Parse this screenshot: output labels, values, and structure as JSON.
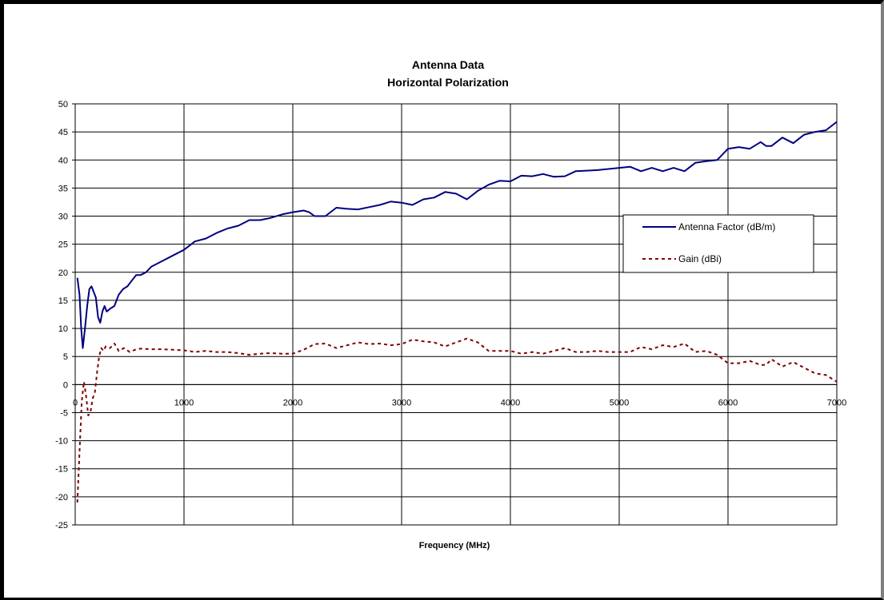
{
  "chart_data": {
    "type": "line",
    "title": "Antenna Data",
    "subtitle": "Horizontal Polarization",
    "xlabel": "Frequency (MHz)",
    "ylabel": "",
    "xlim": [
      0,
      7000
    ],
    "ylim": [
      -25,
      50
    ],
    "xticks": [
      0,
      1000,
      2000,
      3000,
      4000,
      5000,
      6000,
      7000
    ],
    "yticks": [
      -25,
      -20,
      -15,
      -10,
      -5,
      0,
      5,
      10,
      15,
      20,
      25,
      30,
      35,
      40,
      45,
      50
    ],
    "grid": true,
    "legend_position": "right",
    "series": [
      {
        "name": "Antenna Factor (dB/m)",
        "color": "#000080",
        "style": "solid",
        "points": [
          [
            20,
            19
          ],
          [
            40,
            16
          ],
          [
            55,
            10
          ],
          [
            70,
            6.5
          ],
          [
            90,
            10
          ],
          [
            110,
            14
          ],
          [
            130,
            17
          ],
          [
            150,
            17.5
          ],
          [
            170,
            16.5
          ],
          [
            190,
            15.5
          ],
          [
            210,
            12
          ],
          [
            230,
            11
          ],
          [
            250,
            13
          ],
          [
            270,
            14
          ],
          [
            290,
            13
          ],
          [
            320,
            13.5
          ],
          [
            360,
            14
          ],
          [
            400,
            16
          ],
          [
            440,
            17
          ],
          [
            480,
            17.5
          ],
          [
            520,
            18.5
          ],
          [
            560,
            19.5
          ],
          [
            600,
            19.5
          ],
          [
            650,
            20
          ],
          [
            700,
            21
          ],
          [
            800,
            22
          ],
          [
            900,
            23
          ],
          [
            1000,
            24
          ],
          [
            1100,
            25.5
          ],
          [
            1200,
            26
          ],
          [
            1300,
            27
          ],
          [
            1400,
            27.8
          ],
          [
            1500,
            28.3
          ],
          [
            1600,
            29.3
          ],
          [
            1700,
            29.3
          ],
          [
            1800,
            29.7
          ],
          [
            1900,
            30.3
          ],
          [
            2000,
            30.7
          ],
          [
            2100,
            31
          ],
          [
            2150,
            30.7
          ],
          [
            2200,
            30
          ],
          [
            2300,
            30
          ],
          [
            2400,
            31.5
          ],
          [
            2500,
            31.3
          ],
          [
            2600,
            31.2
          ],
          [
            2700,
            31.6
          ],
          [
            2800,
            32
          ],
          [
            2900,
            32.6
          ],
          [
            3000,
            32.4
          ],
          [
            3100,
            32
          ],
          [
            3200,
            33
          ],
          [
            3300,
            33.3
          ],
          [
            3400,
            34.3
          ],
          [
            3500,
            34
          ],
          [
            3600,
            33
          ],
          [
            3700,
            34.5
          ],
          [
            3800,
            35.6
          ],
          [
            3900,
            36.3
          ],
          [
            4000,
            36.2
          ],
          [
            4100,
            37.2
          ],
          [
            4200,
            37.1
          ],
          [
            4300,
            37.5
          ],
          [
            4400,
            37
          ],
          [
            4500,
            37.1
          ],
          [
            4600,
            38
          ],
          [
            4700,
            38.1
          ],
          [
            4800,
            38.2
          ],
          [
            4900,
            38.4
          ],
          [
            5000,
            38.6
          ],
          [
            5100,
            38.8
          ],
          [
            5200,
            38
          ],
          [
            5300,
            38.6
          ],
          [
            5400,
            38
          ],
          [
            5500,
            38.6
          ],
          [
            5600,
            38
          ],
          [
            5700,
            39.5
          ],
          [
            5800,
            39.8
          ],
          [
            5900,
            40
          ],
          [
            6000,
            42
          ],
          [
            6100,
            42.3
          ],
          [
            6200,
            42
          ],
          [
            6300,
            43.2
          ],
          [
            6350,
            42.5
          ],
          [
            6400,
            42.5
          ],
          [
            6500,
            44
          ],
          [
            6600,
            43
          ],
          [
            6700,
            44.5
          ],
          [
            6800,
            45
          ],
          [
            6900,
            45.3
          ],
          [
            7000,
            46.8
          ]
        ]
      },
      {
        "name": "Gain (dBi)",
        "color": "#800000",
        "style": "dashed",
        "points": [
          [
            20,
            -21
          ],
          [
            40,
            -12
          ],
          [
            60,
            -3
          ],
          [
            80,
            0.5
          ],
          [
            100,
            -2
          ],
          [
            120,
            -5.5
          ],
          [
            140,
            -5
          ],
          [
            160,
            -2.5
          ],
          [
            180,
            -1.5
          ],
          [
            200,
            2
          ],
          [
            220,
            5
          ],
          [
            240,
            6.5
          ],
          [
            260,
            6
          ],
          [
            280,
            6.8
          ],
          [
            320,
            6.5
          ],
          [
            360,
            7.3
          ],
          [
            400,
            6
          ],
          [
            450,
            6.5
          ],
          [
            500,
            5.8
          ],
          [
            550,
            6.2
          ],
          [
            600,
            6.4
          ],
          [
            700,
            6.3
          ],
          [
            800,
            6.3
          ],
          [
            900,
            6.2
          ],
          [
            1000,
            6.1
          ],
          [
            1100,
            5.8
          ],
          [
            1200,
            6
          ],
          [
            1300,
            5.8
          ],
          [
            1400,
            5.8
          ],
          [
            1500,
            5.6
          ],
          [
            1600,
            5.3
          ],
          [
            1700,
            5.5
          ],
          [
            1800,
            5.6
          ],
          [
            1900,
            5.5
          ],
          [
            2000,
            5.5
          ],
          [
            2100,
            6.2
          ],
          [
            2200,
            7.2
          ],
          [
            2300,
            7.3
          ],
          [
            2400,
            6.5
          ],
          [
            2500,
            7
          ],
          [
            2600,
            7.5
          ],
          [
            2700,
            7.2
          ],
          [
            2800,
            7.3
          ],
          [
            2900,
            7
          ],
          [
            3000,
            7.2
          ],
          [
            3100,
            8
          ],
          [
            3200,
            7.7
          ],
          [
            3300,
            7.5
          ],
          [
            3400,
            6.8
          ],
          [
            3500,
            7.5
          ],
          [
            3600,
            8.2
          ],
          [
            3700,
            7.5
          ],
          [
            3800,
            6
          ],
          [
            3900,
            6
          ],
          [
            4000,
            6
          ],
          [
            4100,
            5.5
          ],
          [
            4200,
            5.8
          ],
          [
            4300,
            5.5
          ],
          [
            4400,
            6
          ],
          [
            4500,
            6.5
          ],
          [
            4600,
            5.8
          ],
          [
            4700,
            5.8
          ],
          [
            4800,
            6
          ],
          [
            4900,
            5.8
          ],
          [
            5000,
            5.8
          ],
          [
            5100,
            5.8
          ],
          [
            5200,
            6.7
          ],
          [
            5300,
            6.3
          ],
          [
            5400,
            7
          ],
          [
            5500,
            6.7
          ],
          [
            5600,
            7.3
          ],
          [
            5700,
            5.8
          ],
          [
            5800,
            6
          ],
          [
            5900,
            5.3
          ],
          [
            6000,
            3.8
          ],
          [
            6100,
            3.8
          ],
          [
            6200,
            4.2
          ],
          [
            6300,
            3.5
          ],
          [
            6350,
            3.5
          ],
          [
            6400,
            4.5
          ],
          [
            6500,
            3.2
          ],
          [
            6600,
            4
          ],
          [
            6700,
            3
          ],
          [
            6800,
            2
          ],
          [
            6900,
            1.7
          ],
          [
            7000,
            0.5
          ]
        ]
      }
    ]
  }
}
